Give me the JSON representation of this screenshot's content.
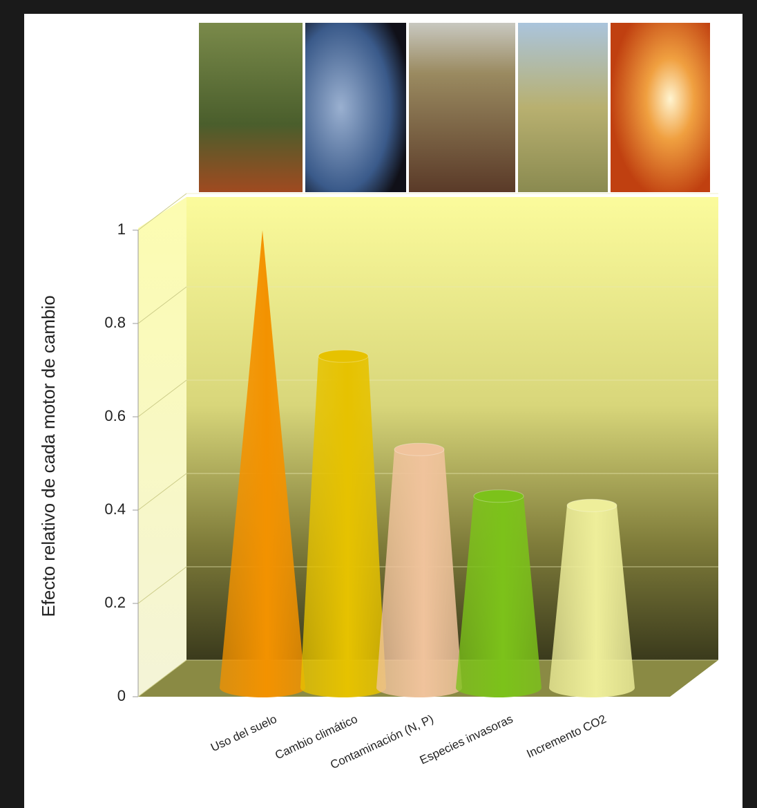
{
  "chart_data": {
    "type": "cone",
    "y_label": "Efecto relativo de cada motor de cambio",
    "categories": [
      "Uso del suelo",
      "Cambio climático",
      "Contaminación (N, P)",
      "Especies invasoras",
      "Incremento CO2"
    ],
    "values": [
      1.0,
      0.73,
      0.53,
      0.43,
      0.41
    ],
    "colors": [
      "#f39200",
      "#e6c200",
      "#f0c39c",
      "#7cc21a",
      "#eeee9a"
    ],
    "ylim": [
      0,
      1
    ],
    "yticks": [
      0,
      0.2,
      0.4,
      0.6,
      0.8,
      1
    ],
    "grid": true
  }
}
